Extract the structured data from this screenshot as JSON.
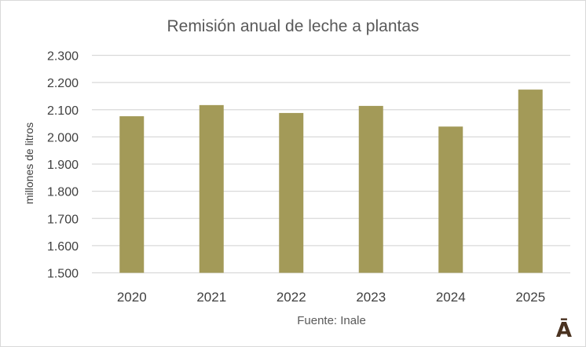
{
  "chart_data": {
    "type": "bar",
    "title": "Remisión anual de leche a plantas",
    "xlabel": "",
    "ylabel": "millones de litros",
    "source": "Fuente: Inale",
    "categories": [
      "2020",
      "2021",
      "2022",
      "2023",
      "2024",
      "2025"
    ],
    "values": [
      2076,
      2117,
      2088,
      2114,
      2038,
      2174
    ],
    "ylim": [
      1500,
      2300
    ],
    "yticks": [
      1500,
      1600,
      1700,
      1800,
      1900,
      2000,
      2100,
      2200,
      2300
    ],
    "ytick_labels": [
      "1.500",
      "1.600",
      "1.700",
      "1.800",
      "1.900",
      "2.000",
      "2.100",
      "2.200",
      "2.300"
    ],
    "grid": true,
    "legend": "none",
    "bar_color": "#a39a58"
  },
  "logo": {
    "text": "Ā"
  }
}
